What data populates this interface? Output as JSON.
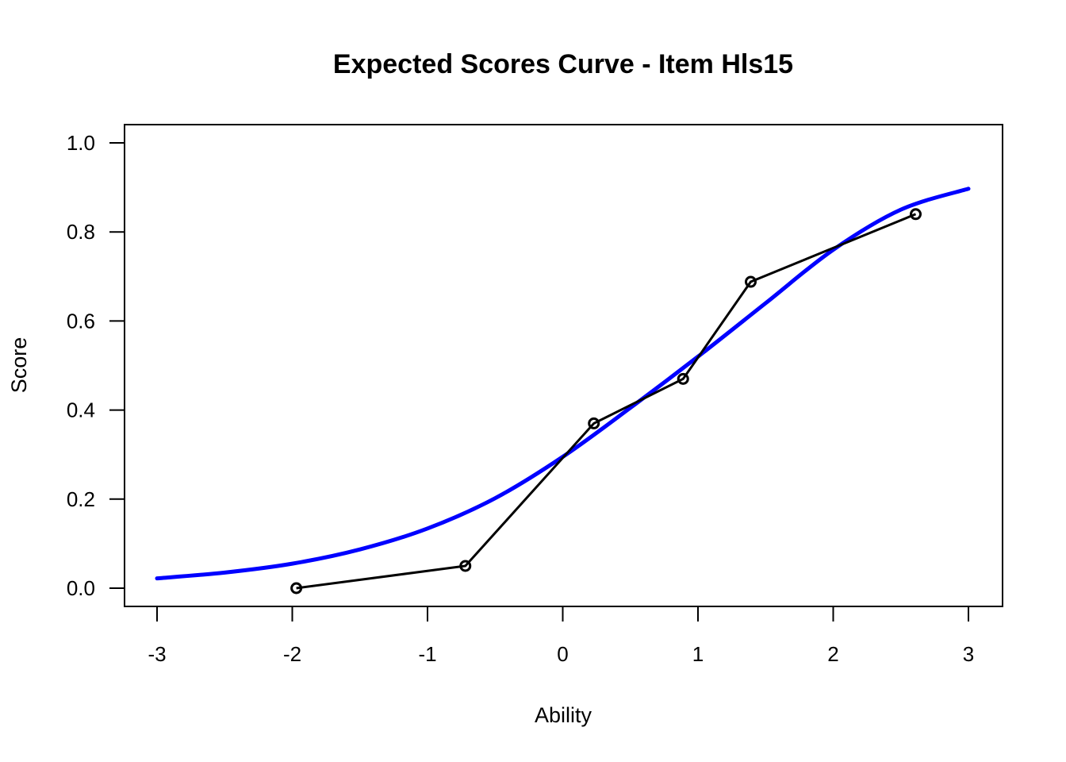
{
  "chart_data": {
    "type": "line",
    "title": "Expected Scores Curve - Item  Hls15",
    "xlabel": "Ability",
    "ylabel": "Score",
    "xlim": [
      -3,
      3
    ],
    "ylim": [
      0,
      1
    ],
    "x_ticks": [
      -3,
      -2,
      -1,
      0,
      1,
      2,
      3
    ],
    "x_tick_labels": [
      "-3",
      "-2",
      "-1",
      "0",
      "1",
      "2",
      "3"
    ],
    "y_ticks": [
      0,
      0.2,
      0.4,
      0.6,
      0.8,
      1.0
    ],
    "y_tick_labels": [
      "0.0",
      "0.2",
      "0.4",
      "0.6",
      "0.8",
      "1.0"
    ],
    "grid": false,
    "legend": "none",
    "series": [
      {
        "style": "smooth-curve",
        "color": "#0000ff",
        "x": [
          -3.0,
          -2.5,
          -2.0,
          -1.5,
          -1.0,
          -0.5,
          0.0,
          0.5,
          1.0,
          1.5,
          2.0,
          2.5,
          3.0
        ],
        "values": [
          0.022,
          0.035,
          0.055,
          0.087,
          0.134,
          0.202,
          0.295,
          0.405,
          0.52,
          0.64,
          0.76,
          0.85,
          0.897
        ]
      },
      {
        "style": "points-and-lines",
        "color": "#000000",
        "marker": "open-circle",
        "x": [
          -1.97,
          -0.72,
          0.23,
          0.89,
          1.39,
          2.61
        ],
        "values": [
          0.0,
          0.05,
          0.37,
          0.47,
          0.688,
          0.84
        ]
      }
    ]
  }
}
